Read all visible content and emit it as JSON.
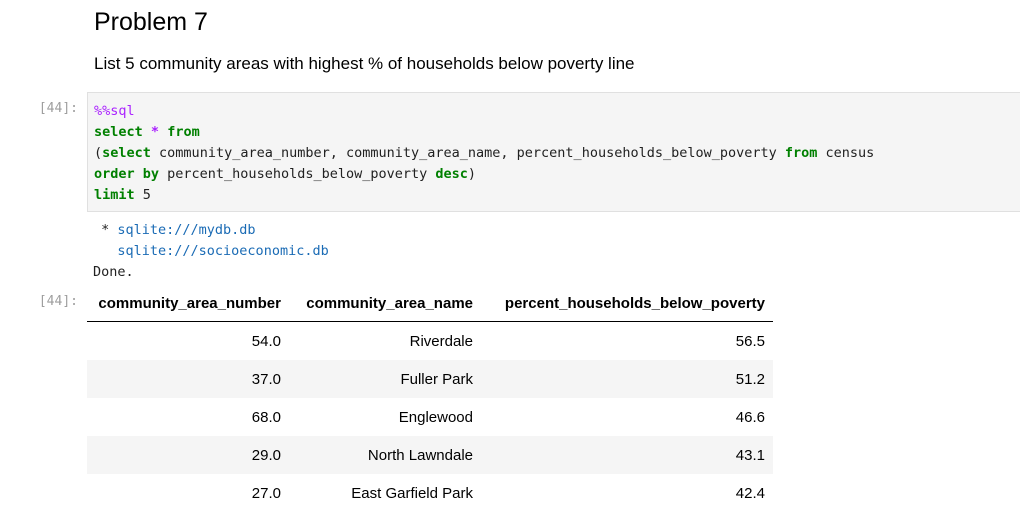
{
  "markdown": {
    "title": "Problem 7",
    "description": "List 5 community areas with highest % of households below poverty line"
  },
  "input_prompt": "[44]:",
  "output_prompt": "[44]:",
  "code": {
    "magic": "%%sql",
    "line2_kw": "select",
    "line2_star": "*",
    "line2_kw2": "from",
    "line3_open": "(",
    "line3_kw": "select",
    "line3_cols": " community_area_number, community_area_name, percent_households_below_poverty ",
    "line3_kw2": "from",
    "line3_table": " census",
    "line4_kw": "order by",
    "line4_col": " percent_households_below_poverty ",
    "line4_kw2": "desc",
    "line4_close": ")",
    "line5_kw": "limit",
    "line5_val": " 5"
  },
  "stdout": {
    "conn1_prefix": " * ",
    "conn1": "sqlite:///mydb.db",
    "conn2_prefix": "   ",
    "conn2": "sqlite:///socioeconomic.db",
    "done": "Done."
  },
  "table": {
    "headers": [
      "community_area_number",
      "community_area_name",
      "percent_households_below_poverty"
    ],
    "rows": [
      [
        "54.0",
        "Riverdale",
        "56.5"
      ],
      [
        "37.0",
        "Fuller Park",
        "51.2"
      ],
      [
        "68.0",
        "Englewood",
        "46.6"
      ],
      [
        "29.0",
        "North Lawndale",
        "43.1"
      ],
      [
        "27.0",
        "East Garfield Park",
        "42.4"
      ]
    ]
  }
}
